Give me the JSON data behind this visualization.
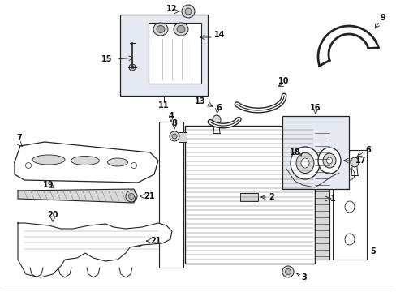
{
  "bg_color": "#ffffff",
  "fig_width": 4.89,
  "fig_height": 3.6,
  "dpi": 100,
  "gray": "#222222",
  "ltgray": "#aaaaaa",
  "fillgray": "#d8d8d8",
  "filllight": "#e8e8e8"
}
